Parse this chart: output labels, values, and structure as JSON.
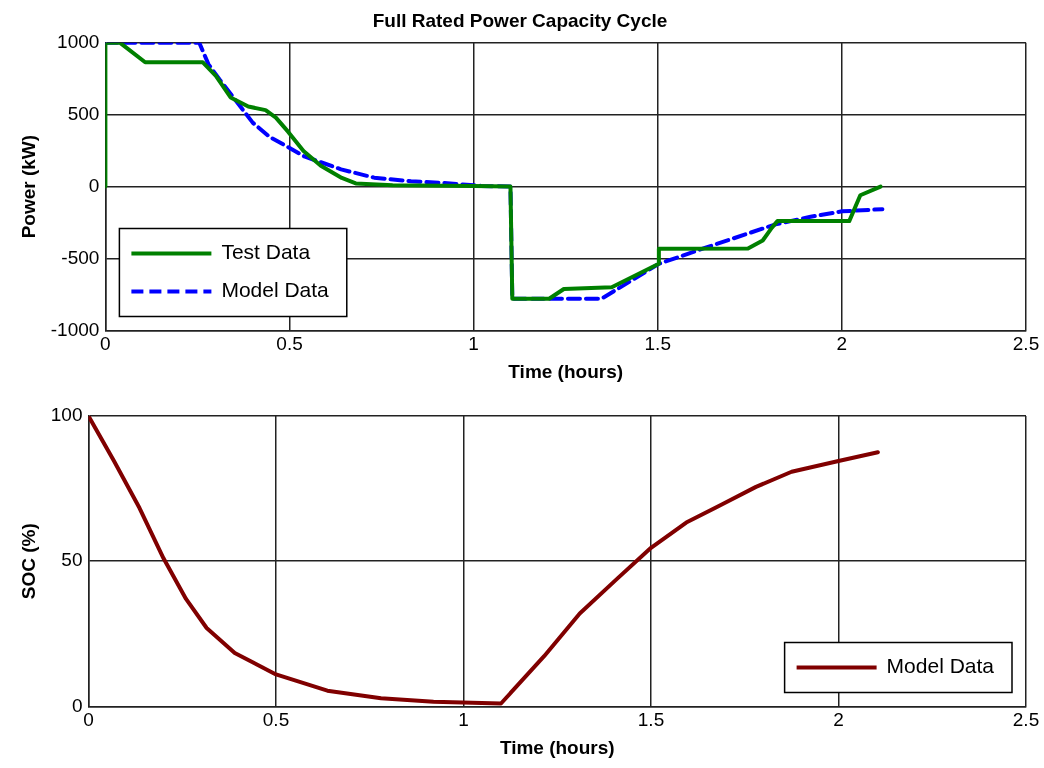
{
  "chart_data": [
    {
      "type": "line",
      "title": "Full Rated Power Capacity Cycle",
      "xlabel": "Time (hours)",
      "ylabel": "Power (kW)",
      "xlim": [
        0,
        2.5
      ],
      "xticks": [
        0,
        0.5,
        1,
        1.5,
        2,
        2.5
      ],
      "ylim": [
        -1000,
        1000
      ],
      "yticks": [
        -1000,
        -500,
        0,
        500,
        1000
      ],
      "grid": true,
      "legend": "bottom left",
      "series": [
        {
          "name": "Test Data",
          "color": "#008000",
          "line_style": "solid",
          "x": [
            0,
            0,
            0.04,
            0.108,
            0.264,
            0.3,
            0.34,
            0.388,
            0.435,
            0.463,
            0.496,
            0.538,
            0.585,
            0.642,
            0.68,
            0.78,
            1.0,
            1.1,
            1.105,
            1.205,
            1.245,
            1.375,
            1.503,
            1.503,
            1.745,
            1.785,
            1.81,
            1.825,
            2.02,
            2.05,
            2.105
          ],
          "values": [
            0,
            1000,
            1000,
            865,
            865,
            770,
            620,
            557,
            532,
            480,
            382,
            247,
            145,
            60,
            22,
            10,
            5,
            0,
            -780,
            -780,
            -712,
            -700,
            -537,
            -432,
            -430,
            -375,
            -285,
            -240,
            -240,
            -60,
            0
          ]
        },
        {
          "name": "Model Data",
          "color": "#0000ff",
          "line_style": "dashed",
          "x": [
            0,
            0.255,
            0.28,
            0.31,
            0.355,
            0.4,
            0.446,
            0.489,
            0.54,
            0.64,
            0.73,
            0.83,
            0.92,
            1.02,
            1.1,
            1.105,
            1.347,
            1.503,
            1.63,
            1.82,
            1.915,
            2.0,
            2.11
          ],
          "values": [
            1000,
            1000,
            850,
            745,
            595,
            445,
            345,
            285,
            210,
            120,
            62,
            37,
            25,
            5,
            0,
            -780,
            -780,
            -537,
            -425,
            -262,
            -210,
            -172,
            -157
          ]
        }
      ]
    },
    {
      "type": "line",
      "xlabel": "Time (hours)",
      "ylabel": "SOC (%)",
      "xlim": [
        0,
        2.5
      ],
      "xticks": [
        0,
        0.5,
        1,
        1.5,
        2,
        2.5
      ],
      "ylim": [
        0,
        100
      ],
      "yticks": [
        0,
        50,
        100
      ],
      "grid": true,
      "legend": "bottom right",
      "series": [
        {
          "name": "Model Data",
          "color": "#800000",
          "line_style": "solid",
          "x": [
            0,
            0.068,
            0.136,
            0.2,
            0.26,
            0.315,
            0.39,
            0.5,
            0.637,
            0.78,
            0.92,
            1.1,
            1.215,
            1.31,
            1.405,
            1.5,
            1.594,
            1.69,
            1.78,
            1.875,
            2.0,
            2.105
          ],
          "values": [
            100,
            84.5,
            68.3,
            51,
            37,
            27,
            18.4,
            11,
            5.4,
            2.8,
            1.6,
            1,
            17.3,
            32,
            43.4,
            54.6,
            63.3,
            69.6,
            75.6,
            80.8,
            84.5,
            87.5
          ]
        }
      ]
    }
  ]
}
